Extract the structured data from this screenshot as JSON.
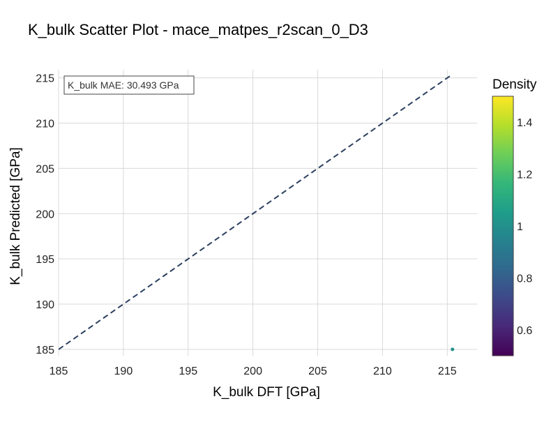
{
  "chart_data": {
    "type": "scatter",
    "title": "K_bulk Scatter Plot - mace_matpes_r2scan_0_D3",
    "xlabel": "K_bulk DFT [GPa]",
    "ylabel": "K_bulk Predicted [GPa]",
    "xlim": [
      185,
      217.3
    ],
    "ylim": [
      184.3,
      215.9
    ],
    "xticks": [
      185,
      190,
      195,
      200,
      205,
      210,
      215
    ],
    "yticks": [
      185,
      190,
      195,
      200,
      205,
      210,
      215
    ],
    "grid": true,
    "series": [
      {
        "x": [
          215.4
        ],
        "y": [
          185.0
        ],
        "density": [
          1.0
        ]
      }
    ],
    "reference_line": {
      "style": "dashed",
      "color": "#2a3f5f",
      "x": [
        185,
        215.4
      ],
      "y": [
        185,
        215.4
      ]
    },
    "annotation": "K_bulk MAE: 30.493 GPa",
    "colorbar": {
      "title": "Density",
      "colorscale": "viridis",
      "range": [
        0.5,
        1.5
      ],
      "ticks": [
        0.6,
        0.8,
        1,
        1.2,
        1.4
      ],
      "tick_labels": [
        "0.6",
        "0.8",
        "1",
        "1.2",
        "1.4"
      ]
    },
    "colors": {
      "point": "#21918c",
      "grid": "#d9d9d9",
      "text": "#2a3f5f",
      "viridis": [
        "#440154",
        "#482878",
        "#3e4989",
        "#31688e",
        "#26828e",
        "#1f9e89",
        "#35b779",
        "#6ece58",
        "#b5de2b",
        "#fde725"
      ]
    }
  }
}
